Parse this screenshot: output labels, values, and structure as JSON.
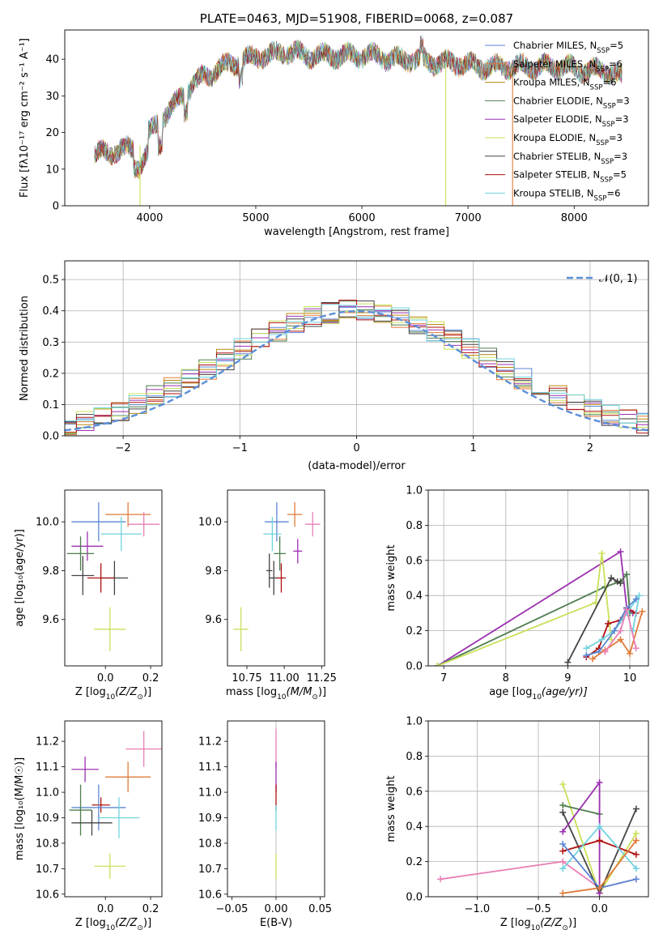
{
  "chart_data": [
    {
      "type": "line",
      "title": "PLATE=0463, MJD=51908, FIBERID=0068, z=0.087",
      "xlabel": "wavelength [Angstrom, rest frame]",
      "ylabel": "Flux [fλ10⁻¹⁷ erg cm⁻² s⁻¹ A⁻¹]",
      "xlim": [
        3200,
        8700
      ],
      "ylim": [
        0,
        48
      ],
      "xticks": [
        "4000",
        "5000",
        "6000",
        "7000",
        "8000"
      ],
      "yticks": [
        "0",
        "10",
        "20",
        "30",
        "40"
      ],
      "legend_position": "top-right",
      "spectrum_knots_x": [
        3480,
        3700,
        3900,
        4000,
        4150,
        4250,
        4350,
        4500,
        4700,
        4900,
        5100,
        5300,
        5500,
        5700,
        5900,
        6100,
        6300,
        6500,
        6700,
        6900,
        7100,
        7300,
        7500,
        7700,
        7900,
        8100,
        8300,
        8450
      ],
      "spectrum_knots_y": [
        14,
        15,
        16,
        20,
        25,
        28,
        32,
        35,
        38,
        40,
        41,
        42,
        41,
        41,
        41,
        41,
        40,
        40,
        39,
        39,
        38,
        38,
        38,
        38,
        38,
        37,
        37,
        35
      ],
      "series": [
        {
          "name": "Chabrier MILES, N$_{SSP}$=5",
          "label_main": "Chabrier MILES, N",
          "label_sub": "SSP",
          "label_tail": "=5",
          "color": "#5b86d4"
        },
        {
          "name": "Salpeter MILES, N$_{SSP}$=6",
          "label_main": "Salpeter MILES, N",
          "label_sub": "SSP",
          "label_tail": "=6",
          "color": "#e07b39"
        },
        {
          "name": "Kroupa MILES, N$_{SSP}$=6",
          "label_main": "Kroupa MILES, N",
          "label_sub": "SSP",
          "label_tail": "=6",
          "color": "#b8860b"
        },
        {
          "name": "Chabrier ELODIE, N$_{SSP}$=3",
          "label_main": "Chabrier ELODIE, N",
          "label_sub": "SSP",
          "label_tail": "=3",
          "color": "#4e7d4e"
        },
        {
          "name": "Salpeter ELODIE, N$_{SSP}$=3",
          "label_main": "Salpeter ELODIE, N",
          "label_sub": "SSP",
          "label_tail": "=3",
          "color": "#9b30b0"
        },
        {
          "name": "Kroupa ELODIE, N$_{SSP}$=3",
          "label_main": "Kroupa ELODIE, N",
          "label_sub": "SSP",
          "label_tail": "=3",
          "color": "#c8e05a"
        },
        {
          "name": "Chabrier STELIB, N$_{SSP}$=3",
          "label_main": "Chabrier STELIB, N",
          "label_sub": "SSP",
          "label_tail": "=3",
          "color": "#444444"
        },
        {
          "name": "Salpeter STELIB, N$_{SSP}$=5",
          "label_main": "Salpeter STELIB, N",
          "label_sub": "SSP",
          "label_tail": "=5",
          "color": "#b01010"
        },
        {
          "name": "Kroupa STELIB, N$_{SSP}$=6",
          "label_main": "Kroupa STELIB, N",
          "label_sub": "SSP",
          "label_tail": "=6",
          "color": "#6fd3df"
        }
      ]
    },
    {
      "type": "histogram",
      "xlabel": "(data-model)/error",
      "ylabel": "Normed distribution",
      "xlim": [
        -2.5,
        2.5
      ],
      "ylim": [
        0,
        0.56
      ],
      "xticks": [
        "−2",
        "−1",
        "0",
        "1",
        "2"
      ],
      "yticks": [
        "0.0",
        "0.1",
        "0.2",
        "0.3",
        "0.4",
        "0.5"
      ],
      "grid": true,
      "legend_position": "top-right",
      "reference": {
        "name": "𝒩(0, 1)",
        "color": "#5b8fd9",
        "mean": 0,
        "sigma": 1
      }
    },
    {
      "type": "scatter",
      "style": "errorbar",
      "xlabel_text": "Z [log",
      "xlabel_sub": "10",
      "xlabel_tail": "(Z/Z",
      "xlabel_end": ")]",
      "ylabel": "age  [log₁₀(age/yr)]",
      "xlim": [
        -0.18,
        0.25
      ],
      "ylim": [
        9.41,
        10.13
      ],
      "xticks": [
        "0.0",
        "0.2"
      ],
      "yticks": [
        "9.6",
        "9.8",
        "10.0"
      ],
      "points": [
        {
          "x": -0.03,
          "y": 10.0,
          "xerr": 0.12,
          "yerr": 0.08,
          "color": "#5b86d4"
        },
        {
          "x": 0.1,
          "y": 10.03,
          "xerr": 0.1,
          "yerr": 0.05,
          "color": "#e07b39"
        },
        {
          "x": 0.17,
          "y": 9.99,
          "xerr": 0.07,
          "yerr": 0.05,
          "color": "#e97fb5"
        },
        {
          "x": 0.07,
          "y": 9.95,
          "xerr": 0.09,
          "yerr": 0.07,
          "color": "#6fd3df"
        },
        {
          "x": -0.08,
          "y": 9.9,
          "xerr": 0.07,
          "yerr": 0.06,
          "color": "#9b30b0"
        },
        {
          "x": -0.11,
          "y": 9.87,
          "xerr": 0.06,
          "yerr": 0.07,
          "color": "#4e7d4e"
        },
        {
          "x": -0.1,
          "y": 9.78,
          "xerr": 0.05,
          "yerr": 0.08,
          "color": "#444444"
        },
        {
          "x": 0.04,
          "y": 9.77,
          "xerr": 0.06,
          "yerr": 0.07,
          "color": "#444444"
        },
        {
          "x": -0.02,
          "y": 9.77,
          "xerr": 0.06,
          "yerr": 0.06,
          "color": "#b01010"
        },
        {
          "x": 0.02,
          "y": 9.56,
          "xerr": 0.07,
          "yerr": 0.09,
          "color": "#c8e05a"
        }
      ]
    },
    {
      "type": "scatter",
      "style": "errorbar",
      "xlabel_text": "mass [log",
      "xlabel_sub": "10",
      "xlabel_tail": "(M/M",
      "xlabel_end": ")]",
      "xlim": [
        10.62,
        11.27
      ],
      "ylim": [
        9.41,
        10.13
      ],
      "xticks": [
        "10.75",
        "11.00",
        "11.25"
      ],
      "yticks": [
        "9.6",
        "9.8",
        "10.0"
      ],
      "points": [
        {
          "x": 10.95,
          "y": 10.0,
          "xerr": 0.08,
          "yerr": 0.08,
          "color": "#5b86d4"
        },
        {
          "x": 11.07,
          "y": 10.03,
          "xerr": 0.05,
          "yerr": 0.05,
          "color": "#e07b39"
        },
        {
          "x": 11.19,
          "y": 9.99,
          "xerr": 0.05,
          "yerr": 0.05,
          "color": "#e97fb5"
        },
        {
          "x": 10.92,
          "y": 9.95,
          "xerr": 0.06,
          "yerr": 0.07,
          "color": "#6fd3df"
        },
        {
          "x": 11.09,
          "y": 9.88,
          "xerr": 0.03,
          "yerr": 0.05,
          "color": "#9b30b0"
        },
        {
          "x": 10.97,
          "y": 9.87,
          "xerr": 0.04,
          "yerr": 0.07,
          "color": "#4e7d4e"
        },
        {
          "x": 10.9,
          "y": 9.8,
          "xerr": 0.02,
          "yerr": 0.07,
          "color": "#444444"
        },
        {
          "x": 10.93,
          "y": 9.77,
          "xerr": 0.03,
          "yerr": 0.07,
          "color": "#444444"
        },
        {
          "x": 10.98,
          "y": 9.77,
          "xerr": 0.03,
          "yerr": 0.06,
          "color": "#b01010"
        },
        {
          "x": 10.71,
          "y": 9.56,
          "xerr": 0.05,
          "yerr": 0.09,
          "color": "#c8e05a"
        }
      ]
    },
    {
      "type": "line",
      "xlabel_text": "age  [log",
      "xlabel_sub": "10",
      "xlabel_tail": "(age/yr)]",
      "ylabel": "mass weight",
      "xlim": [
        6.75,
        10.3
      ],
      "ylim": [
        0,
        1.0
      ],
      "xticks": [
        "7",
        "8",
        "9",
        "10"
      ],
      "yticks": [
        "0.0",
        "0.2",
        "0.4",
        "0.6",
        "0.8",
        "1.0"
      ],
      "grid": true,
      "lines": [
        {
          "color": "#9b30b0",
          "xs": [
            6.9,
            9.85,
            9.95,
            10.05
          ],
          "ys": [
            0.0,
            0.65,
            0.33,
            0.3
          ]
        },
        {
          "color": "#4e7d4e",
          "xs": [
            6.9,
            9.6,
            9.85,
            9.95,
            10.0
          ],
          "ys": [
            0.0,
            0.45,
            0.48,
            0.52,
            0.3
          ]
        },
        {
          "color": "#c8e05a",
          "xs": [
            6.9,
            9.45,
            9.55,
            9.7
          ],
          "ys": [
            0.0,
            0.36,
            0.64,
            0.15
          ]
        },
        {
          "color": "#444444",
          "xs": [
            9.0,
            9.7,
            9.8,
            9.85
          ],
          "ys": [
            0.02,
            0.5,
            0.48,
            0.47
          ]
        },
        {
          "color": "#b01010",
          "xs": [
            9.3,
            9.5,
            9.65,
            9.85,
            9.95,
            10.1
          ],
          "ys": [
            0.05,
            0.1,
            0.24,
            0.26,
            0.33,
            0.3
          ]
        },
        {
          "color": "#6fd3df",
          "xs": [
            9.3,
            9.55,
            9.75,
            9.95,
            10.15,
            10.05
          ],
          "ys": [
            0.1,
            0.15,
            0.2,
            0.3,
            0.4,
            0.2
          ]
        },
        {
          "color": "#5b86d4",
          "xs": [
            9.3,
            9.5,
            9.75,
            9.95,
            10.1
          ],
          "ys": [
            0.06,
            0.08,
            0.2,
            0.33,
            0.38
          ]
        },
        {
          "color": "#e07b39",
          "xs": [
            9.4,
            9.6,
            9.85,
            10.0,
            10.2
          ],
          "ys": [
            0.04,
            0.09,
            0.15,
            0.07,
            0.31
          ]
        },
        {
          "color": "#e97fb5",
          "xs": [
            9.6,
            9.85,
            9.95,
            10.1
          ],
          "ys": [
            0.08,
            0.2,
            0.32,
            0.1
          ]
        }
      ]
    },
    {
      "type": "scatter",
      "style": "errorbar",
      "xlabel_text": "Z [log",
      "xlabel_sub": "10",
      "xlabel_tail": "(Z/Z",
      "xlabel_end": ")]",
      "ylabel": "mass [log₁₀(M/M☉)]",
      "xlim": [
        -0.18,
        0.25
      ],
      "ylim": [
        10.59,
        11.28
      ],
      "xticks": [
        "0.0",
        "0.2"
      ],
      "yticks": [
        "10.6",
        "10.7",
        "10.8",
        "10.9",
        "11.0",
        "11.1",
        "11.2"
      ],
      "points": [
        {
          "x": 0.17,
          "y": 11.17,
          "xerr": 0.08,
          "yerr": 0.07,
          "color": "#e97fb5"
        },
        {
          "x": -0.09,
          "y": 11.09,
          "xerr": 0.06,
          "yerr": 0.05,
          "color": "#9b30b0"
        },
        {
          "x": 0.1,
          "y": 11.06,
          "xerr": 0.1,
          "yerr": 0.06,
          "color": "#e07b39"
        },
        {
          "x": -0.02,
          "y": 10.95,
          "xerr": 0.04,
          "yerr": 0.03,
          "color": "#b01010"
        },
        {
          "x": -0.03,
          "y": 10.94,
          "xerr": 0.12,
          "yerr": 0.09,
          "color": "#5b86d4"
        },
        {
          "x": -0.11,
          "y": 10.93,
          "xerr": 0.05,
          "yerr": 0.1,
          "color": "#4e7d4e"
        },
        {
          "x": 0.06,
          "y": 10.9,
          "xerr": 0.09,
          "yerr": 0.08,
          "color": "#6fd3df"
        },
        {
          "x": -0.06,
          "y": 10.88,
          "xerr": 0.09,
          "yerr": 0.05,
          "color": "#444444"
        },
        {
          "x": 0.02,
          "y": 10.71,
          "xerr": 0.07,
          "yerr": 0.05,
          "color": "#c8e05a"
        }
      ]
    },
    {
      "type": "scatter",
      "style": "errorbar",
      "xlabel": "E(B-V)",
      "xlim": [
        -0.055,
        0.055
      ],
      "ylim": [
        10.59,
        11.28
      ],
      "xticks": [
        "−0.05",
        "0.00",
        "0.05"
      ],
      "yticks": [
        "10.6",
        "10.7",
        "10.8",
        "10.9",
        "11.0",
        "11.1",
        "11.2"
      ],
      "points": [
        {
          "x": 0.0,
          "y": 11.17,
          "xerr": 0.0,
          "yerr": 0.08,
          "color": "#e97fb5"
        },
        {
          "x": 0.0,
          "y": 11.06,
          "xerr": 0.0,
          "yerr": 0.06,
          "color": "#9b30b0"
        },
        {
          "x": 0.0,
          "y": 10.98,
          "xerr": 0.0,
          "yerr": 0.05,
          "color": "#b01010"
        },
        {
          "x": 0.0,
          "y": 10.9,
          "xerr": 0.0,
          "yerr": 0.05,
          "color": "#6fd3df"
        },
        {
          "x": 0.0,
          "y": 10.71,
          "xerr": 0.0,
          "yerr": 0.05,
          "color": "#c8e05a"
        }
      ]
    },
    {
      "type": "line",
      "xlabel_text": "Z [log",
      "xlabel_sub": "10",
      "xlabel_tail": "(Z/Z",
      "xlabel_end": ")]",
      "ylabel": "mass weight",
      "xlim": [
        -1.4,
        0.4
      ],
      "ylim": [
        0,
        1.0
      ],
      "xticks": [
        "−1.0",
        "−0.5",
        "0.0"
      ],
      "yticks": [
        "0.0",
        "0.2",
        "0.4",
        "0.6",
        "0.8",
        "1.0"
      ],
      "grid": true,
      "lines": [
        {
          "color": "#e97fb5",
          "xs": [
            -1.3,
            -0.3,
            0.0,
            0.3
          ],
          "ys": [
            0.1,
            0.2,
            0.05,
            0.1
          ]
        },
        {
          "color": "#c8e05a",
          "xs": [
            -0.3,
            0.0,
            0.3
          ],
          "ys": [
            0.64,
            0.02,
            0.36
          ]
        },
        {
          "color": "#4e7d4e",
          "xs": [
            -0.3,
            0.0
          ],
          "ys": [
            0.52,
            0.47
          ]
        },
        {
          "color": "#444444",
          "xs": [
            -0.3,
            0.0,
            0.3
          ],
          "ys": [
            0.48,
            0.02,
            0.5
          ]
        },
        {
          "color": "#9b30b0",
          "xs": [
            -0.3,
            0.0,
            0.0
          ],
          "ys": [
            0.37,
            0.65,
            0.02
          ]
        },
        {
          "color": "#b01010",
          "xs": [
            -0.3,
            0.0,
            0.3
          ],
          "ys": [
            0.26,
            0.32,
            0.24
          ]
        },
        {
          "color": "#6fd3df",
          "xs": [
            -0.3,
            0.0,
            0.3
          ],
          "ys": [
            0.16,
            0.4,
            0.16
          ]
        },
        {
          "color": "#5b86d4",
          "xs": [
            -0.3,
            0.0,
            0.3
          ],
          "ys": [
            0.3,
            0.05,
            0.1
          ]
        },
        {
          "color": "#e07b39",
          "xs": [
            -0.3,
            0.0,
            0.3
          ],
          "ys": [
            0.02,
            0.05,
            0.32
          ]
        }
      ]
    }
  ]
}
